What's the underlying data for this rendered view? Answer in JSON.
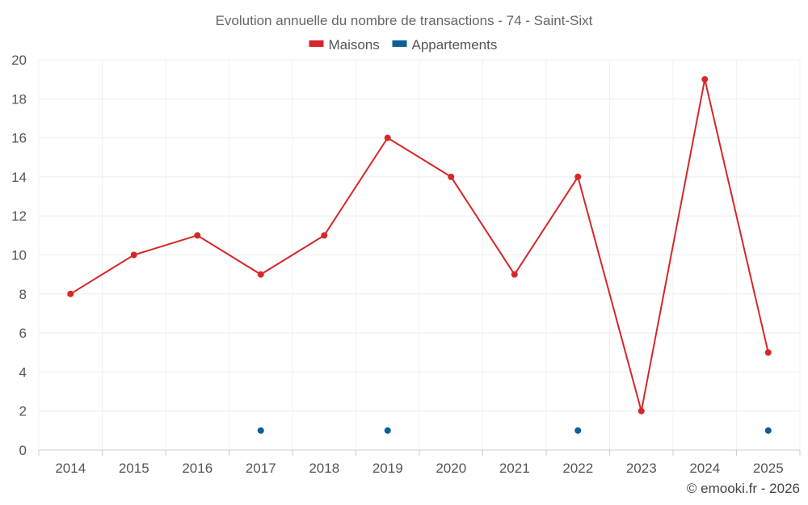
{
  "chart_data": {
    "type": "line",
    "title": "Evolution annuelle du nombre de transactions - 74 - Saint-Sixt",
    "categories": [
      "2014",
      "2015",
      "2016",
      "2017",
      "2018",
      "2019",
      "2020",
      "2021",
      "2022",
      "2023",
      "2024",
      "2025"
    ],
    "series": [
      {
        "name": "Maisons",
        "color": "#d62728",
        "values": [
          8,
          10,
          11,
          9,
          11,
          16,
          14,
          9,
          14,
          2,
          19,
          5
        ],
        "connected": true
      },
      {
        "name": "Appartements",
        "color": "#0a5f96",
        "values": [
          null,
          null,
          null,
          1,
          null,
          1,
          null,
          null,
          1,
          null,
          null,
          1
        ],
        "connected": false
      }
    ],
    "ylim": [
      0,
      20
    ],
    "yticks": [
      0,
      2,
      4,
      6,
      8,
      10,
      12,
      14,
      16,
      18,
      20
    ],
    "grid": true,
    "legend_position": "top-center"
  },
  "credit": "© emooki.fr - 2026"
}
